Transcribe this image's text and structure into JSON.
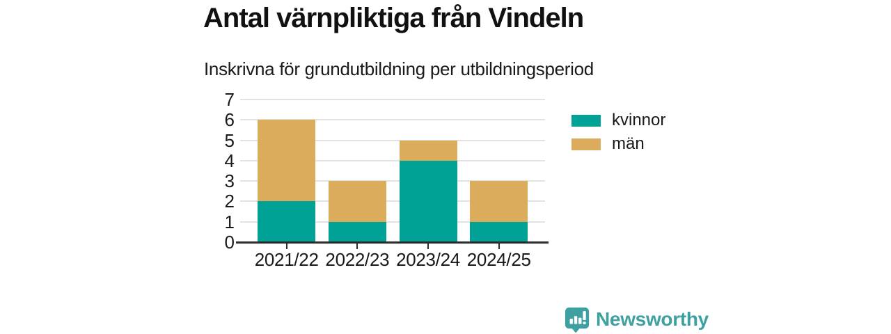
{
  "header": {
    "title": "Antal värnpliktiga från Vindeln",
    "subtitle": "Inskrivna för grundutbildning per utbildningsperiod"
  },
  "chart_data": {
    "type": "bar",
    "stacked": true,
    "title": "Antal värnpliktiga från Vindeln",
    "subtitle": "Inskrivna för grundutbildning per utbildningsperiod",
    "categories": [
      "2021/22",
      "2022/23",
      "2023/24",
      "2024/25"
    ],
    "series": [
      {
        "name": "kvinnor",
        "key": "kvinnor",
        "color": "#00a296",
        "values": [
          2,
          1,
          4,
          1
        ]
      },
      {
        "name": "män",
        "key": "man",
        "color": "#dcac5d",
        "values": [
          4,
          2,
          1,
          2
        ]
      }
    ],
    "totals": [
      6,
      3,
      5,
      3
    ],
    "xlabel": "",
    "ylabel": "",
    "ylim": [
      0,
      7
    ],
    "yticks": [
      0,
      1,
      2,
      3,
      4,
      5,
      6,
      7
    ],
    "grid": "horizontal",
    "legend_position": "right"
  },
  "theme": {
    "text": "#1a1a1a",
    "gridline": "#e2e2e2",
    "axis": "#2b2b2b",
    "background": "#ffffff",
    "brand_color": "#3fa0a1"
  },
  "footer": {
    "brand": "Newsworthy"
  }
}
